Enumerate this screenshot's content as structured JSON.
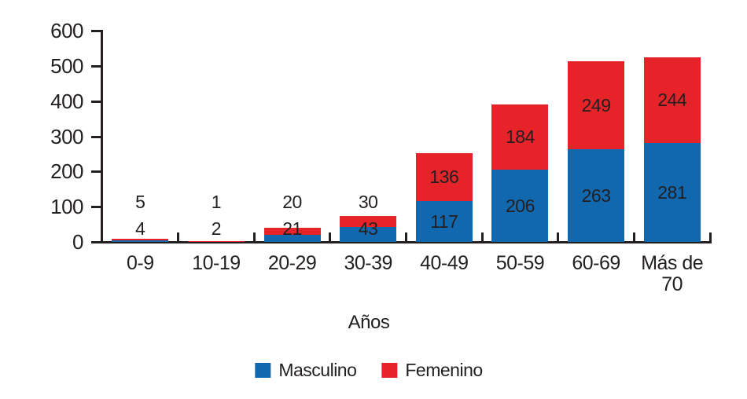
{
  "chart_data": {
    "type": "bar",
    "stacked": true,
    "title": "",
    "xlabel": "Años",
    "ylabel": "",
    "ylim": [
      0,
      600
    ],
    "yticks": [
      0,
      100,
      200,
      300,
      400,
      500,
      600
    ],
    "grid": false,
    "legend_position": "bottom",
    "categories": [
      "0-9",
      "10-19",
      "20-29",
      "30-39",
      "40-49",
      "50-59",
      "60-69",
      "Más de\n70"
    ],
    "series": [
      {
        "name": "Masculino",
        "color": "#1168af",
        "values": [
          4,
          2,
          21,
          43,
          117,
          206,
          263,
          281
        ]
      },
      {
        "name": "Femenino",
        "color": "#e62329",
        "values": [
          5,
          1,
          20,
          30,
          136,
          184,
          249,
          244
        ]
      }
    ]
  },
  "colors": {
    "axis": "#231f20",
    "text": "#231f20",
    "background": "#ffffff"
  }
}
